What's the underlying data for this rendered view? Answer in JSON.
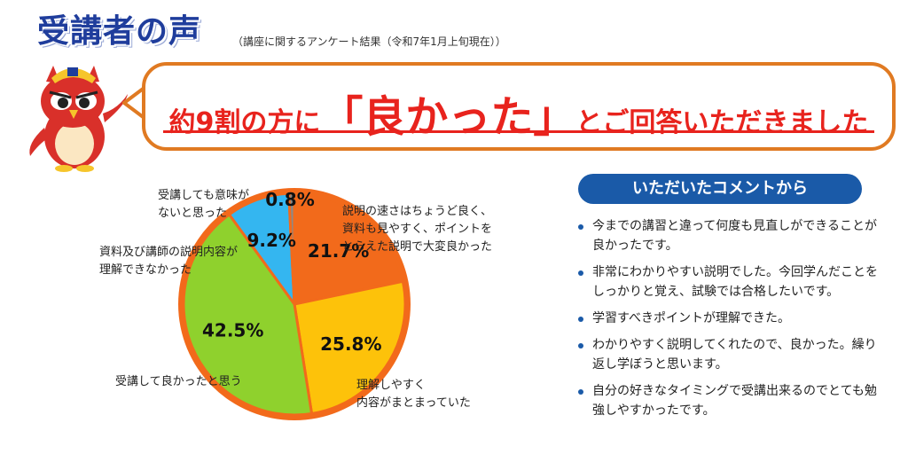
{
  "header": {
    "title": "受講者の声",
    "subtitle": "（講座に関するアンケート結果（令和7年1月上旬現在））"
  },
  "headline": {
    "part1": "約9割の方に",
    "quote": "「良かった」",
    "part2": "とご回答いただきました"
  },
  "comment_section": {
    "title": "いただいたコメントから",
    "items": [
      "今までの講習と違って何度も見直しができることが良かったです。",
      "非常にわかりやすい説明でした。今回学んだことをしっかりと覚え、試験では合格したいです。",
      "学習すべきポイントが理解できた。",
      "わかりやすく説明してくれたので、良かった。繰り返し学ぼうと思います。",
      "自分の好きなタイミングで受講出来るのでとても勉強しやすかったです。"
    ]
  },
  "colors": {
    "title": "#1f3d9c",
    "headline": "#e8231d",
    "bubble_border": "#e07a22",
    "pie_border": "#f26a1b",
    "banner": "#1a5aa8"
  },
  "chart_data": {
    "type": "pie",
    "slices": [
      {
        "label_lines": [
          "説明の速さはちょうど良く、",
          "資料も見やすく、ポイントを",
          "とらえた説明で大変良かった"
        ],
        "value": 21.7,
        "value_label": "21.7%",
        "color": "#f26a1b"
      },
      {
        "label_lines": [
          "理解しやすく",
          "内容がまとまっていた"
        ],
        "value": 25.8,
        "value_label": "25.8%",
        "color": "#fdc20a"
      },
      {
        "label_lines": [
          "受講して良かったと思う"
        ],
        "value": 42.5,
        "value_label": "42.5%",
        "color": "#8fd12d"
      },
      {
        "label_lines": [
          "資料及び講師の説明内容が",
          "理解できなかった"
        ],
        "value": 9.2,
        "value_label": "9.2%",
        "color": "#34b6f0"
      },
      {
        "label_lines": [
          "受講しても意味が",
          "ないと思った"
        ],
        "value": 0.8,
        "value_label": "0.8%",
        "color": "#8a8a8a"
      }
    ]
  }
}
